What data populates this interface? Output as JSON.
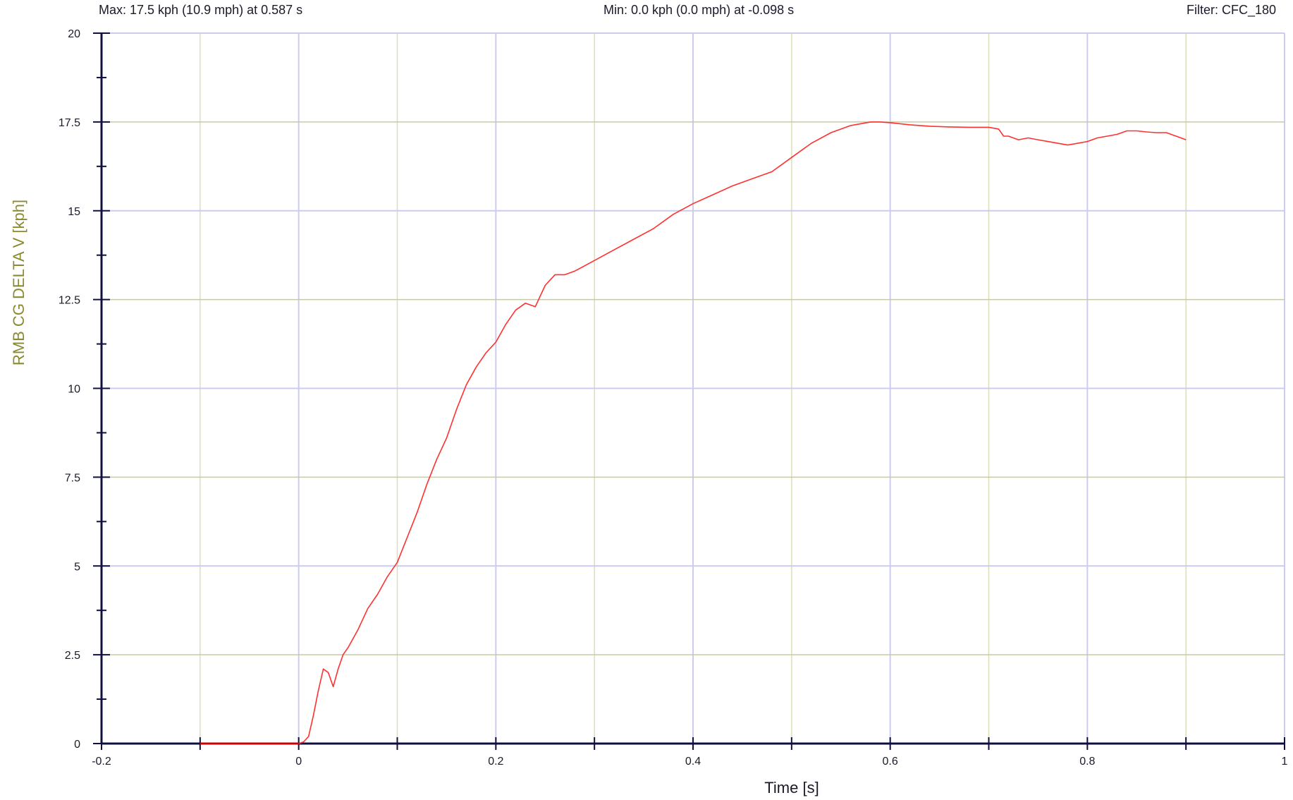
{
  "header": {
    "max_text": "Max:  17.5 kph (10.9 mph) at 0.587 s",
    "min_text": "Min:  0.0 kph (0.0 mph) at -0.098 s",
    "filter_text": "Filter: CFC_180"
  },
  "colors": {
    "series": "#ff3030",
    "pre_trigger": "#cc0000",
    "axis": "#101040",
    "grid_x_major": "#ccccee",
    "grid_x_minor": "#ddddb8",
    "grid_y_major": "#ccccee",
    "grid_y_minor": "#c8c8aa",
    "ylabel_color": "#8a8a30"
  },
  "chart_data": {
    "type": "line",
    "title": "",
    "xlabel": "Time [s]",
    "ylabel": "RMB CG DELTA V [kph]",
    "xlim": [
      -0.2,
      1.0
    ],
    "ylim": [
      0,
      20
    ],
    "x_ticks": [
      "-0.2",
      "0",
      "0.2",
      "0.4",
      "0.6",
      "0.8",
      "1"
    ],
    "y_ticks": [
      "0",
      "2.5",
      "5",
      "7.5",
      "10",
      "12.5",
      "15",
      "17.5",
      "20"
    ],
    "grid": true,
    "legend": "none",
    "series": [
      {
        "x": [
          -0.1,
          -0.05,
          -0.02,
          0,
          0.005,
          0.01,
          0.015,
          0.02,
          0.025,
          0.03,
          0.035,
          0.04,
          0.045,
          0.05,
          0.06,
          0.07,
          0.08,
          0.09,
          0.1,
          0.11,
          0.12,
          0.13,
          0.14,
          0.15,
          0.16,
          0.17,
          0.18,
          0.19,
          0.2,
          0.21,
          0.22,
          0.23,
          0.24,
          0.25,
          0.26,
          0.27,
          0.28,
          0.29,
          0.3,
          0.32,
          0.34,
          0.36,
          0.38,
          0.4,
          0.42,
          0.44,
          0.46,
          0.48,
          0.5,
          0.52,
          0.54,
          0.56,
          0.58,
          0.59,
          0.6,
          0.62,
          0.64,
          0.66,
          0.68,
          0.7,
          0.71,
          0.715,
          0.72,
          0.73,
          0.74,
          0.75,
          0.76,
          0.77,
          0.78,
          0.79,
          0.8,
          0.81,
          0.82,
          0.83,
          0.84,
          0.85,
          0.86,
          0.87,
          0.88,
          0.89,
          0.9
        ],
        "y": [
          0,
          0,
          0,
          0,
          0.05,
          0.2,
          0.8,
          1.5,
          2.1,
          2.0,
          1.6,
          2.1,
          2.5,
          2.7,
          3.2,
          3.8,
          4.2,
          4.7,
          5.1,
          5.8,
          6.5,
          7.3,
          8.0,
          8.6,
          9.4,
          10.1,
          10.6,
          11.0,
          11.3,
          11.8,
          12.2,
          12.4,
          12.3,
          12.9,
          13.2,
          13.2,
          13.3,
          13.45,
          13.6,
          13.9,
          14.2,
          14.5,
          14.9,
          15.2,
          15.45,
          15.7,
          15.9,
          16.1,
          16.5,
          16.9,
          17.2,
          17.4,
          17.5,
          17.5,
          17.48,
          17.42,
          17.38,
          17.36,
          17.35,
          17.35,
          17.3,
          17.1,
          17.1,
          17.0,
          17.05,
          17.0,
          16.95,
          16.9,
          16.85,
          16.9,
          16.95,
          17.05,
          17.1,
          17.15,
          17.25,
          17.25,
          17.22,
          17.2,
          17.2,
          17.1,
          17.0
        ]
      }
    ]
  }
}
